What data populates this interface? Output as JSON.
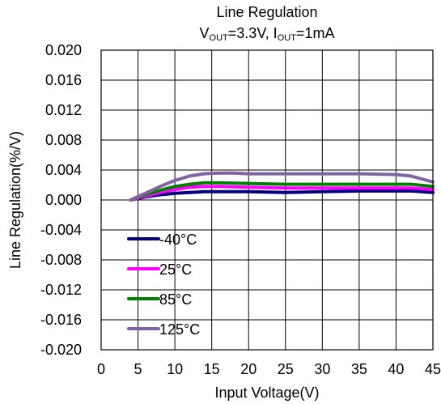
{
  "chart_data": {
    "type": "line",
    "title": "Line Regulation",
    "subtitle_parts": {
      "v": "V",
      "v_sub": "OUT",
      "v_val": "=3.3V, ",
      "i": "I",
      "i_sub": "OUT",
      "i_val": "=1mA"
    },
    "xlabel": "Input Voltage(V)",
    "ylabel": "Line Regulation(%/V)",
    "xlim": [
      0,
      45
    ],
    "ylim": [
      -0.02,
      0.02
    ],
    "x_ticks": [
      0,
      5,
      10,
      15,
      20,
      25,
      30,
      35,
      40,
      45
    ],
    "x_tick_labels": [
      "0",
      "5",
      "10",
      "15",
      "20",
      "25",
      "30",
      "35",
      "40",
      "45"
    ],
    "y_ticks": [
      0.02,
      0.016,
      0.012,
      0.008,
      0.004,
      0,
      -0.004,
      -0.008,
      -0.012,
      -0.016,
      -0.02
    ],
    "y_tick_labels": [
      "0.020",
      "0.016",
      "0.012",
      "0.008",
      "0.004",
      "0.000",
      "-0.004",
      "-0.008",
      "-0.012",
      "-0.016",
      "-0.020"
    ],
    "grid": true,
    "legend_position": "bottom-left",
    "series": [
      {
        "name": "-40°C",
        "color": "#000080",
        "x": [
          4,
          6,
          8,
          10,
          12,
          14,
          16,
          20,
          25,
          30,
          35,
          40,
          42,
          45
        ],
        "y": [
          0.0,
          0.0004,
          0.0007,
          0.0009,
          0.001,
          0.0011,
          0.0011,
          0.0011,
          0.001,
          0.0011,
          0.0012,
          0.0012,
          0.0012,
          0.001
        ]
      },
      {
        "name": "25°C",
        "color": "#ff00ff",
        "x": [
          4,
          6,
          8,
          10,
          12,
          14,
          16,
          20,
          25,
          30,
          35,
          40,
          42,
          45
        ],
        "y": [
          0.0,
          0.0005,
          0.001,
          0.0014,
          0.0017,
          0.0018,
          0.0018,
          0.0017,
          0.0016,
          0.0016,
          0.0016,
          0.0016,
          0.0016,
          0.0014
        ]
      },
      {
        "name": "85°C",
        "color": "#008000",
        "x": [
          4,
          6,
          8,
          10,
          12,
          14,
          16,
          20,
          25,
          30,
          35,
          40,
          42,
          45
        ],
        "y": [
          0.0,
          0.0007,
          0.0013,
          0.0018,
          0.0021,
          0.0023,
          0.0023,
          0.0022,
          0.0021,
          0.0021,
          0.0021,
          0.0021,
          0.0021,
          0.0018
        ]
      },
      {
        "name": "125°C",
        "color": "#8064a2",
        "x": [
          4,
          6,
          8,
          10,
          12,
          14,
          16,
          18,
          20,
          25,
          30,
          35,
          40,
          42,
          45
        ],
        "y": [
          0.0,
          0.0009,
          0.0018,
          0.0026,
          0.0032,
          0.0035,
          0.0036,
          0.0036,
          0.0035,
          0.0035,
          0.0035,
          0.0035,
          0.0034,
          0.0032,
          0.0024
        ]
      }
    ]
  }
}
